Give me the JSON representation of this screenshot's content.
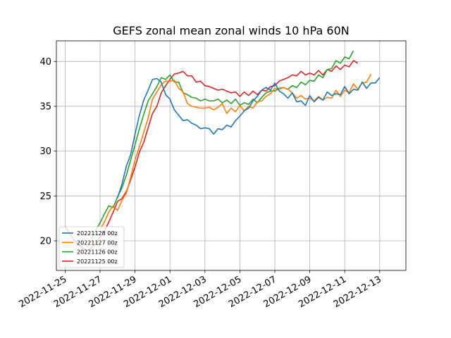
{
  "chart_data": {
    "type": "line",
    "title": "GEFS zonal mean zonal winds 10 hPa 60N",
    "xlabel": "",
    "ylabel": "",
    "x_range": [
      "2022-11-24T12:00",
      "2022-12-14T12:00"
    ],
    "ylim": [
      16.7,
      42.3
    ],
    "grid": true,
    "legend_placement": "lower-left",
    "x_ticks": [
      "2022-11-25",
      "2022-11-27",
      "2022-11-29",
      "2022-12-01",
      "2022-12-03",
      "2022-12-05",
      "2022-12-07",
      "2022-12-09",
      "2022-12-11",
      "2022-12-13"
    ],
    "y_ticks": [
      20,
      25,
      30,
      35,
      40
    ],
    "series": [
      {
        "name": "20221128 00z",
        "color": "#1f77b4",
        "start": "2022-11-28T00:00",
        "step_hours": 6,
        "values": [
          24.8,
          26.3,
          28.3,
          29.6,
          31.9,
          34.0,
          35.7,
          36.8,
          38.0,
          38.1,
          37.7,
          36.3,
          35.8,
          34.6,
          34.0,
          33.4,
          33.5,
          33.1,
          32.9,
          32.5,
          32.6,
          32.5,
          31.9,
          32.5,
          32.4,
          32.9,
          32.7,
          33.4,
          33.9,
          34.5,
          34.8,
          35.6,
          36.1,
          36.8,
          37.1,
          36.8,
          37.6,
          36.7,
          36.4,
          35.9,
          36.5,
          35.5,
          35.6,
          35.1,
          36.2,
          35.5,
          36.0,
          35.7,
          36.6,
          36.2,
          36.4,
          36.3,
          37.2,
          36.4,
          36.9,
          36.8,
          37.7,
          37.0,
          37.6,
          37.6,
          38.2
        ]
      },
      {
        "name": "20221127 00z",
        "color": "#ff7f0e",
        "start": "2022-11-27T00:00",
        "step_hours": 6,
        "values": [
          21.3,
          22.1,
          23.2,
          23.9,
          23.4,
          24.5,
          25.3,
          27.1,
          29.0,
          30.5,
          32.1,
          33.7,
          35.8,
          36.6,
          37.4,
          37.8,
          37.8,
          37.9,
          37.0,
          36.6,
          35.3,
          35.0,
          34.9,
          34.8,
          34.8,
          34.9,
          34.6,
          34.9,
          35.3,
          34.2,
          34.8,
          34.4,
          35.1,
          34.5,
          35.0,
          34.8,
          35.5,
          35.6,
          36.1,
          36.4,
          37.0,
          36.9,
          37.1,
          36.9,
          36.5,
          35.9,
          36.2,
          35.8,
          35.9,
          35.6,
          36.1,
          35.7,
          36.0,
          35.9,
          36.8,
          36.1,
          36.8,
          36.5,
          37.5,
          36.9,
          37.6,
          37.7,
          38.6
        ]
      },
      {
        "name": "20221126 00z",
        "color": "#2ca02c",
        "start": "2022-11-26T12:00",
        "step_hours": 6,
        "values": [
          20.2,
          21.2,
          22.0,
          23.0,
          23.9,
          23.7,
          24.9,
          25.9,
          27.3,
          29.0,
          30.7,
          32.5,
          34.1,
          35.6,
          36.4,
          37.2,
          38.2,
          38.0,
          38.5,
          37.7,
          37.7,
          36.5,
          36.3,
          36.0,
          35.9,
          35.6,
          35.8,
          35.6,
          35.6,
          35.8,
          35.4,
          35.7,
          35.3,
          35.8,
          35.1,
          35.4,
          35.2,
          35.8,
          35.4,
          36.0,
          36.5,
          36.7,
          36.7,
          37.0,
          37.1,
          36.9,
          37.3,
          37.1,
          37.7,
          37.4,
          37.9,
          37.8,
          38.5,
          38.2,
          39.1,
          39.2,
          40.1,
          39.8,
          40.5,
          40.3,
          41.2
        ]
      },
      {
        "name": "20221125 00z",
        "color": "#d62728",
        "start": "2022-11-25T00:00",
        "step_hours": 6,
        "values": [
          21.6,
          20.9,
          20.1,
          19.6,
          19.2,
          18.9,
          19.2,
          19.7,
          20.4,
          21.1,
          22.1,
          23.2,
          24.4,
          24.7,
          25.5,
          26.8,
          28.2,
          29.9,
          31.0,
          32.6,
          34.2,
          35.0,
          36.5,
          37.3,
          38.0,
          38.6,
          38.7,
          38.9,
          38.4,
          38.4,
          37.7,
          37.8,
          37.3,
          37.2,
          37.0,
          36.8,
          36.9,
          36.7,
          36.5,
          36.6,
          36.1,
          36.6,
          36.2,
          36.7,
          36.3,
          36.8,
          36.7,
          37.2,
          37.3,
          37.8,
          38.0,
          38.2,
          38.5,
          38.4,
          38.9,
          38.5,
          38.7,
          38.5,
          39.0,
          38.5,
          39.1,
          38.9,
          39.5,
          39.1,
          39.6,
          39.4,
          40.1,
          39.8
        ]
      }
    ]
  }
}
